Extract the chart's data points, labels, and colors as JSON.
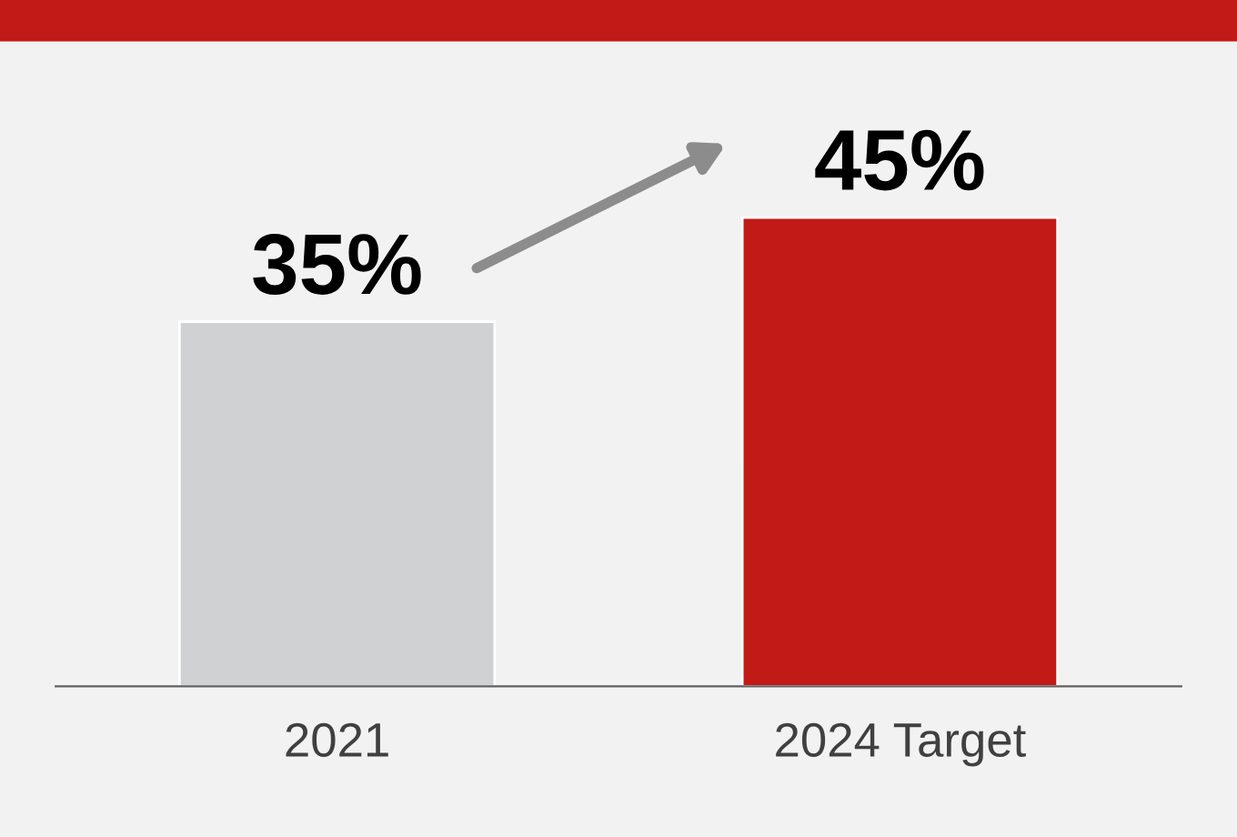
{
  "chart_data": {
    "type": "bar",
    "categories": [
      "2021",
      "2024 Target"
    ],
    "values": [
      35,
      45
    ],
    "colors": [
      "#d0d1d3",
      "#c21a17"
    ],
    "value_labels": [
      "35%",
      "45%"
    ],
    "grid": false,
    "legend": false
  }
}
